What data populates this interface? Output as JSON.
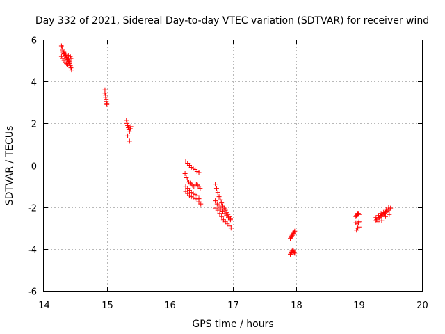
{
  "chart_data": {
    "type": "scatter",
    "title": "Day 332 of 2021, Sidereal Day-to-day VTEC variation (SDTVAR) for receiver wind",
    "xlabel": "GPS time / hours",
    "ylabel": "SDTVAR / TECUs",
    "xlim": [
      14,
      20
    ],
    "ylim": [
      -6,
      6
    ],
    "xticks": [
      14,
      15,
      16,
      17,
      18,
      19,
      20
    ],
    "yticks": [
      -6,
      -4,
      -2,
      0,
      2,
      4,
      6
    ],
    "grid": true,
    "marker": "+",
    "color": "#ff0000",
    "series": [
      {
        "name": "SDTVAR",
        "x": [
          14.28,
          14.29,
          14.3,
          14.31,
          14.32,
          14.33,
          14.34,
          14.35,
          14.36,
          14.37,
          14.38,
          14.39,
          14.4,
          14.41,
          14.42,
          14.43,
          14.44,
          14.28,
          14.3,
          14.32,
          14.34,
          14.36,
          14.38,
          14.4,
          14.42,
          14.31,
          14.35,
          14.39,
          14.43,
          14.97,
          14.97,
          14.98,
          14.98,
          14.99,
          14.99,
          15.0,
          15.0,
          15.31,
          15.32,
          15.33,
          15.34,
          15.35,
          15.36,
          15.37,
          15.38,
          15.33,
          15.36,
          16.25,
          16.28,
          16.31,
          16.34,
          16.37,
          16.4,
          16.43,
          16.46,
          16.24,
          16.26,
          16.28,
          16.3,
          16.32,
          16.34,
          16.36,
          16.38,
          16.4,
          16.42,
          16.44,
          16.46,
          16.48,
          16.25,
          16.28,
          16.31,
          16.34,
          16.37,
          16.4,
          16.43,
          16.46,
          16.25,
          16.28,
          16.31,
          16.34,
          16.37,
          16.4,
          16.43,
          16.46,
          16.49,
          16.72,
          16.74,
          16.76,
          16.78,
          16.8,
          16.82,
          16.84,
          16.86,
          16.88,
          16.9,
          16.92,
          16.94,
          16.96,
          16.72,
          16.75,
          16.78,
          16.81,
          16.84,
          16.87,
          16.9,
          16.93,
          16.96,
          16.73,
          16.76,
          16.79,
          16.82,
          16.85,
          16.88,
          16.91,
          16.94,
          16.97,
          17.91,
          17.92,
          17.93,
          17.94,
          17.95,
          17.96,
          17.97,
          17.98,
          17.91,
          17.92,
          17.93,
          17.94,
          17.95,
          17.96,
          17.97,
          17.98,
          18.95,
          18.96,
          18.97,
          18.98,
          18.99,
          19.0,
          18.95,
          18.97,
          18.99,
          19.0,
          18.96,
          18.98,
          19.0,
          19.26,
          19.28,
          19.3,
          19.32,
          19.34,
          19.36,
          19.38,
          19.4,
          19.42,
          19.44,
          19.46,
          19.48,
          19.5,
          19.27,
          19.31,
          19.35,
          19.39,
          19.43,
          19.47,
          19.3,
          19.36,
          19.42,
          19.48
        ],
        "y": [
          5.7,
          5.65,
          5.5,
          5.4,
          5.35,
          5.3,
          5.25,
          5.2,
          5.15,
          5.1,
          5.05,
          5.0,
          4.95,
          4.85,
          4.75,
          4.65,
          4.55,
          5.2,
          5.1,
          5.0,
          4.9,
          4.85,
          4.8,
          4.9,
          5.2,
          5.4,
          5.3,
          5.25,
          5.1,
          3.6,
          3.45,
          3.35,
          3.25,
          3.15,
          3.05,
          2.95,
          2.9,
          2.15,
          2.0,
          1.9,
          1.8,
          1.7,
          1.6,
          1.75,
          1.85,
          1.4,
          1.15,
          0.2,
          0.1,
          0.0,
          -0.1,
          -0.15,
          -0.2,
          -0.3,
          -0.35,
          -0.4,
          -0.6,
          -0.7,
          -0.8,
          -0.85,
          -0.9,
          -0.95,
          -1.0,
          -0.95,
          -0.9,
          -0.95,
          -1.0,
          -1.1,
          -1.0,
          -1.1,
          -1.2,
          -1.3,
          -1.35,
          -1.4,
          -1.45,
          -1.6,
          -1.25,
          -1.35,
          -1.45,
          -1.5,
          -1.55,
          -1.6,
          -1.65,
          -1.75,
          -1.85,
          -0.9,
          -1.1,
          -1.3,
          -1.5,
          -1.65,
          -1.8,
          -1.95,
          -2.05,
          -2.15,
          -2.25,
          -2.35,
          -2.45,
          -2.55,
          -1.7,
          -1.85,
          -2.0,
          -2.1,
          -2.2,
          -2.3,
          -2.4,
          -2.5,
          -2.6,
          -2.05,
          -2.15,
          -2.3,
          -2.45,
          -2.6,
          -2.7,
          -2.8,
          -2.9,
          -3.0,
          -3.5,
          -3.45,
          -3.4,
          -3.35,
          -3.3,
          -3.25,
          -3.2,
          -3.15,
          -4.25,
          -4.2,
          -4.15,
          -4.1,
          -4.05,
          -4.1,
          -4.15,
          -4.2,
          -2.45,
          -2.4,
          -2.35,
          -2.3,
          -2.3,
          -2.35,
          -2.75,
          -2.8,
          -2.75,
          -2.7,
          -3.1,
          -3.0,
          -2.95,
          -2.65,
          -2.6,
          -2.55,
          -2.5,
          -2.45,
          -2.4,
          -2.35,
          -2.3,
          -2.25,
          -2.2,
          -2.15,
          -2.1,
          -2.05,
          -2.5,
          -2.4,
          -2.3,
          -2.25,
          -2.1,
          -2.0,
          -2.7,
          -2.65,
          -2.45,
          -2.35
        ]
      }
    ]
  }
}
